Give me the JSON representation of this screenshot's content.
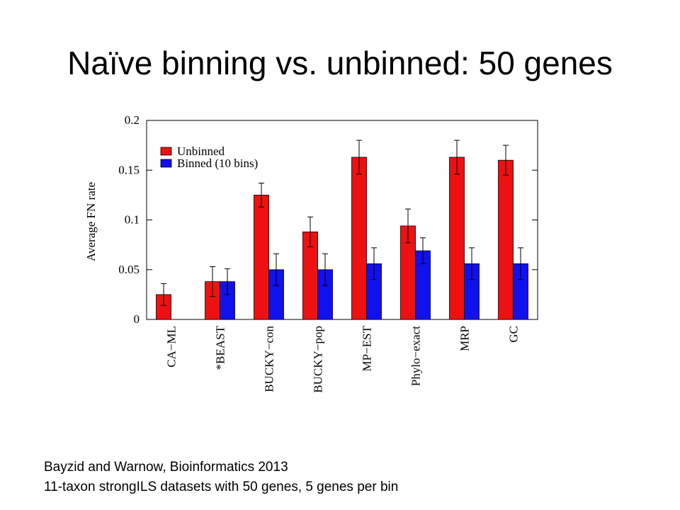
{
  "slide": {
    "title": "Naïve binning vs. unbinned: 50 genes",
    "caption_line1": "Bayzid and Warnow, Bioinformatics 2013",
    "caption_line2": "11-taxon strongILS datasets with 50 genes, 5 genes per bin"
  },
  "chart_data": {
    "type": "bar",
    "title": "",
    "xlabel": "",
    "ylabel": "Average FN rate",
    "ylim": [
      0,
      0.2
    ],
    "yticks": [
      "0",
      "0.05",
      "0.1",
      "0.15",
      "0.2"
    ],
    "categories": [
      "CA−ML",
      "*BEAST",
      "BUCKY−con",
      "BUCKY−pop",
      "MP−EST",
      "Phylo−exact",
      "MRP",
      "GC"
    ],
    "grid": false,
    "legend_position": "top-left",
    "series": [
      {
        "name": "Unbinned",
        "color": "#ee1111",
        "values": [
          0.025,
          0.038,
          0.125,
          0.088,
          0.163,
          0.094,
          0.163,
          0.16
        ],
        "errors": [
          0.011,
          0.015,
          0.012,
          0.015,
          0.017,
          0.017,
          0.017,
          0.015
        ]
      },
      {
        "name": "Binned (10 bins)",
        "color": "#1111ee",
        "values": [
          null,
          0.038,
          0.05,
          0.05,
          0.056,
          0.069,
          0.056,
          0.056
        ],
        "errors": [
          null,
          0.013,
          0.016,
          0.016,
          0.016,
          0.013,
          0.016,
          0.016
        ]
      }
    ]
  }
}
